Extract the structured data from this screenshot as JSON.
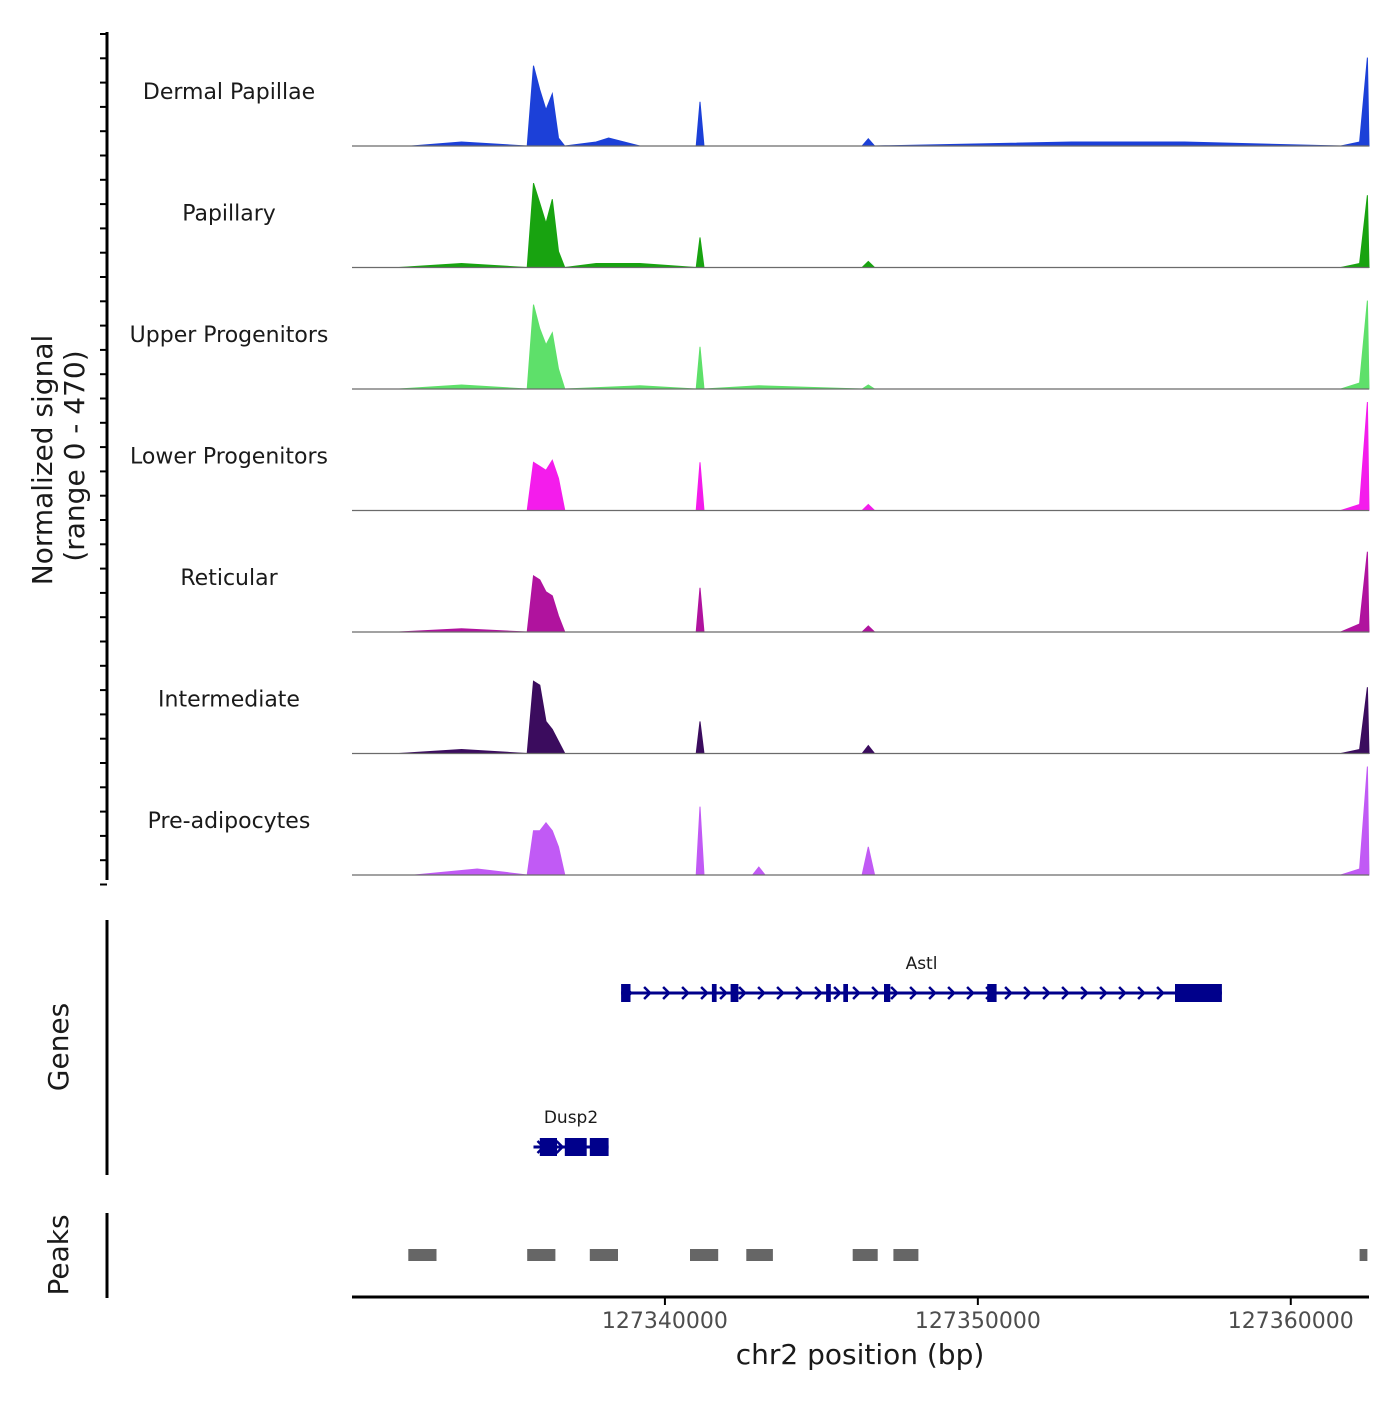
{
  "chart_data": {
    "type": "area",
    "title": "",
    "region": {
      "chrom": "chr2",
      "start": 127330000,
      "end": 127362500
    },
    "xlabel": "chr2 position (bp)",
    "ylabel_line1": "Normalized signal",
    "ylabel_line2": "(range 0 - 470)",
    "ylim": [
      0,
      470
    ],
    "x_ticks": [
      {
        "value": 127340000,
        "label": "127340000"
      },
      {
        "value": 127350000,
        "label": "127350000"
      },
      {
        "value": 127360000,
        "label": "127360000"
      }
    ],
    "coverage_tracks": [
      {
        "name": "Dermal Papillae",
        "color": "#1C40D8",
        "x": [
          127331900,
          127333500,
          127335600,
          127335800,
          127336000,
          127336200,
          127336400,
          127336600,
          127336800,
          127337800,
          127338200,
          127339200,
          127341000,
          127341120,
          127341250,
          127346300,
          127346500,
          127346700,
          127353000,
          127356600,
          127361600,
          127362200,
          127362450,
          127362500
        ],
        "y": [
          0,
          10,
          0,
          200,
          140,
          90,
          130,
          20,
          0,
          10,
          20,
          0,
          0,
          110,
          0,
          0,
          18,
          0,
          10,
          10,
          0,
          10,
          220,
          0
        ]
      },
      {
        "name": "Papillary",
        "color": "#18A310",
        "x": [
          127331500,
          127333500,
          127335600,
          127335800,
          127336000,
          127336200,
          127336400,
          127336600,
          127336800,
          127337800,
          127339200,
          127341000,
          127341120,
          127341250,
          127346300,
          127346500,
          127346700,
          127361600,
          127362200,
          127362450,
          127362500
        ],
        "y": [
          0,
          10,
          0,
          210,
          160,
          110,
          170,
          40,
          0,
          10,
          10,
          0,
          75,
          0,
          0,
          15,
          0,
          0,
          10,
          180,
          0
        ]
      },
      {
        "name": "Upper Progenitors",
        "color": "#5EE06A",
        "x": [
          127331500,
          127333500,
          127335600,
          127335800,
          127336000,
          127336200,
          127336400,
          127336600,
          127336800,
          127339200,
          127341000,
          127341120,
          127341250,
          127343000,
          127346300,
          127346500,
          127346700,
          127361600,
          127362200,
          127362450,
          127362500
        ],
        "y": [
          0,
          10,
          0,
          210,
          150,
          110,
          140,
          50,
          0,
          8,
          0,
          105,
          0,
          8,
          0,
          10,
          0,
          0,
          15,
          220,
          0
        ]
      },
      {
        "name": "Lower Progenitors",
        "color": "#F41CEC",
        "x": [
          127331500,
          127335600,
          127335800,
          127336000,
          127336200,
          127336400,
          127336600,
          127336800,
          127341000,
          127341120,
          127341250,
          127346300,
          127346500,
          127346700,
          127361600,
          127362200,
          127362450,
          127362500
        ],
        "y": [
          0,
          0,
          120,
          110,
          100,
          125,
          80,
          0,
          0,
          120,
          0,
          0,
          15,
          0,
          0,
          15,
          270,
          0
        ]
      },
      {
        "name": "Reticular",
        "color": "#B0139E",
        "x": [
          127331500,
          127333500,
          127335600,
          127335800,
          127336000,
          127336200,
          127336400,
          127336600,
          127336800,
          127341000,
          127341120,
          127341250,
          127346300,
          127346500,
          127346700,
          127361600,
          127362200,
          127362450,
          127362500
        ],
        "y": [
          0,
          8,
          0,
          140,
          130,
          100,
          90,
          40,
          0,
          0,
          110,
          0,
          0,
          15,
          0,
          0,
          20,
          200,
          0
        ]
      },
      {
        "name": "Intermediate",
        "color": "#3B0C5E",
        "x": [
          127331500,
          127333500,
          127335600,
          127335800,
          127336000,
          127336200,
          127336400,
          127336600,
          127336800,
          127341000,
          127341120,
          127341250,
          127346300,
          127346500,
          127346700,
          127361600,
          127362200,
          127362450,
          127362500
        ],
        "y": [
          0,
          10,
          0,
          180,
          170,
          80,
          60,
          30,
          0,
          0,
          80,
          0,
          0,
          20,
          0,
          0,
          10,
          165,
          0
        ]
      },
      {
        "name": "Pre-adipocytes",
        "color": "#C15AF5",
        "x": [
          127332000,
          127334000,
          127335600,
          127335800,
          127336000,
          127336200,
          127336400,
          127336600,
          127336800,
          127341000,
          127341120,
          127341250,
          127342800,
          127343000,
          127343200,
          127346300,
          127346500,
          127346700,
          127361600,
          127362200,
          127362450,
          127362500
        ],
        "y": [
          0,
          15,
          0,
          110,
          110,
          130,
          110,
          70,
          0,
          0,
          170,
          0,
          0,
          20,
          0,
          0,
          70,
          0,
          0,
          15,
          270,
          0
        ]
      }
    ],
    "genes": [
      {
        "name": "Astl",
        "start": 127338600,
        "end": 127357800,
        "strand": "+",
        "exons": [
          [
            127338600,
            127338900
          ],
          [
            127341500,
            127341650
          ],
          [
            127342100,
            127342350
          ],
          [
            127345150,
            127345300
          ],
          [
            127345700,
            127345850
          ],
          [
            127347000,
            127347200
          ],
          [
            127350300,
            127350600
          ],
          [
            127356300,
            127357800
          ]
        ]
      },
      {
        "name": "Dusp2",
        "start": 127335800,
        "end": 127338200,
        "strand": "+",
        "exons": [
          [
            127336000,
            127336550
          ],
          [
            127336800,
            127337500
          ],
          [
            127337600,
            127338200
          ]
        ]
      }
    ],
    "peaks": [
      [
        127331800,
        127332700
      ],
      [
        127335600,
        127336500
      ],
      [
        127337600,
        127338500
      ],
      [
        127340800,
        127341700
      ],
      [
        127342600,
        127343450
      ],
      [
        127346000,
        127346800
      ],
      [
        127347300,
        127348100
      ],
      [
        127362200,
        127362450
      ]
    ],
    "track_names": {
      "genes": "Genes",
      "peaks": "Peaks"
    }
  }
}
